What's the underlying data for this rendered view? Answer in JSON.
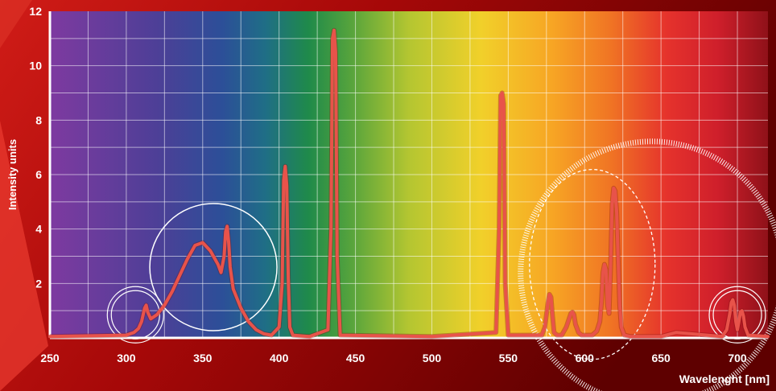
{
  "chart_data": {
    "type": "line",
    "ylabel": "Intensity units",
    "xlabel": "Wavelenght [nm]",
    "xlim": [
      250,
      720
    ],
    "ylim": [
      0,
      12
    ],
    "x_ticks": [
      250,
      300,
      350,
      400,
      450,
      500,
      550,
      600,
      650,
      700
    ],
    "y_ticks": [
      2,
      4,
      6,
      8,
      10,
      12
    ],
    "grid": true,
    "background": "visible-spectrum gradient (violet to red)",
    "line_color": "#e8534a",
    "series": [
      {
        "x": [
          250,
          300,
          305,
          308,
          310,
          312,
          313,
          314,
          316,
          320,
          325,
          330,
          335,
          340,
          345,
          350,
          355,
          358,
          360,
          362,
          364,
          365,
          366,
          367,
          368,
          370,
          375,
          380,
          385,
          390,
          395,
          400,
          402,
          403,
          404,
          405,
          406,
          407,
          409,
          420,
          432,
          434,
          435,
          436,
          437,
          438,
          440,
          500,
          542,
          544,
          545,
          546,
          547,
          548,
          550,
          572,
          574,
          576,
          577,
          578,
          579,
          580,
          582,
          585,
          588,
          591,
          592,
          593,
          594,
          596,
          598,
          605,
          608,
          610,
          611,
          612,
          613,
          614,
          615,
          616,
          617,
          618,
          619,
          620,
          621,
          622,
          623,
          624,
          626,
          630,
          650,
          660,
          690,
          693,
          695,
          696,
          697,
          698,
          699,
          700,
          701,
          702,
          703,
          704,
          705,
          707,
          720
        ],
        "y": [
          0.05,
          0.1,
          0.2,
          0.35,
          0.6,
          1.1,
          1.2,
          0.95,
          0.7,
          0.85,
          1.2,
          1.7,
          2.3,
          2.9,
          3.4,
          3.5,
          3.2,
          2.9,
          2.7,
          2.4,
          3.0,
          3.9,
          4.1,
          3.5,
          2.6,
          1.8,
          1.1,
          0.6,
          0.3,
          0.15,
          0.1,
          0.4,
          2.0,
          5.8,
          6.3,
          5.6,
          2.2,
          0.4,
          0.1,
          0.05,
          0.3,
          4.0,
          11.0,
          11.3,
          10.5,
          3.0,
          0.1,
          0.05,
          0.2,
          4.0,
          8.9,
          9.0,
          8.6,
          2.0,
          0.1,
          0.1,
          0.4,
          1.3,
          1.6,
          1.5,
          0.8,
          0.2,
          0.1,
          0.1,
          0.4,
          0.9,
          0.95,
          0.85,
          0.5,
          0.2,
          0.1,
          0.1,
          0.25,
          0.6,
          1.3,
          2.4,
          2.7,
          2.5,
          1.2,
          0.9,
          2.6,
          4.9,
          5.5,
          5.4,
          4.6,
          2.8,
          1.2,
          0.4,
          0.1,
          0.05,
          0.05,
          0.2,
          0.05,
          0.3,
          0.9,
          1.3,
          1.4,
          1.2,
          0.6,
          0.3,
          0.6,
          0.95,
          1.0,
          0.8,
          0.4,
          0.1,
          0.05
        ]
      }
    ]
  },
  "ui": {
    "colors": {
      "frame": "#b10d0d",
      "frame_dark": "#6f0000",
      "frame_light": "#e13a2f",
      "axis_text": "#ffffff",
      "grid": "#ffffff"
    },
    "highlights": [
      {
        "kind": "double-circle",
        "center_x": 306,
        "center_y": 0.85
      },
      {
        "kind": "circle",
        "center_x": 357,
        "center_y": 2.6
      },
      {
        "kind": "dashed-ellipse",
        "center_x": 605,
        "center_y": 2.7
      },
      {
        "kind": "hatched-circle",
        "center_x": 644,
        "center_y": 2.4
      },
      {
        "kind": "double-circle",
        "center_x": 700,
        "center_y": 0.85
      }
    ]
  }
}
